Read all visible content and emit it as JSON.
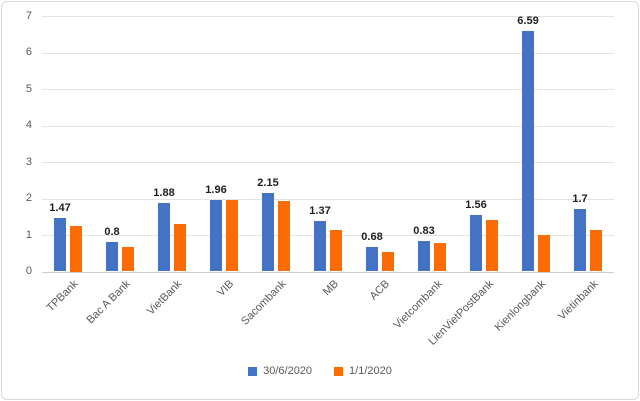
{
  "chart_data": {
    "type": "bar",
    "title": "",
    "xlabel": "",
    "ylabel": "",
    "categories": [
      "TPBank",
      "Bac A Bank",
      "VietBank",
      "VIB",
      "Sacombank",
      "MB",
      "ACB",
      "Vietcombank",
      "LienVietPostBank",
      "Kienlongbank",
      "Vietinbank"
    ],
    "series": [
      {
        "name": "30/6/2020",
        "color": "#4472C4",
        "values": [
          1.47,
          0.8,
          1.88,
          1.96,
          2.15,
          1.37,
          0.68,
          0.83,
          1.56,
          6.59,
          1.7
        ],
        "data_labels": [
          "1.47",
          "0.8",
          "1.88",
          "1.96",
          "2.15",
          "1.37",
          "0.68",
          "0.83",
          "1.56",
          "6.59",
          "1.7"
        ]
      },
      {
        "name": "1/1/2020",
        "color": "#FB6C04",
        "values": [
          1.25,
          0.68,
          1.3,
          1.95,
          1.93,
          1.13,
          0.54,
          0.78,
          1.42,
          1.0,
          1.15
        ],
        "data_labels": null
      }
    ],
    "ylim": [
      0,
      7
    ],
    "yticks": [
      "0",
      "1",
      "2",
      "3",
      "4",
      "5",
      "6",
      "7"
    ],
    "grid": true,
    "legend_position": "bottom",
    "colors": {
      "grid": "#e3e3e3",
      "axis_line": "#cfcfcf",
      "tick_text": "#595959",
      "data_label_text": "#1f1f1f",
      "frame_border": "#d9d9d9",
      "background": "#ffffff"
    }
  }
}
